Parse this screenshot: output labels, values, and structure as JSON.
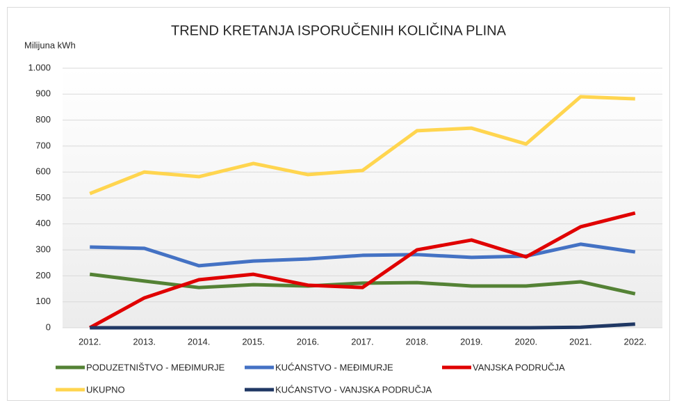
{
  "chart_data": {
    "type": "line",
    "title": "TREND KRETANJA ISPORUČENIH KOLIČINA PLINA",
    "y_label": "Milijuna kWh",
    "categories": [
      "2012.",
      "2013.",
      "2014.",
      "2015.",
      "2016.",
      "2017.",
      "2018.",
      "2019.",
      "2020.",
      "2021.",
      "2022."
    ],
    "series": [
      {
        "name": "PODUZETNIŠTVO - MEĐIMURJE",
        "color": "#548235",
        "values": [
          206,
          180,
          155,
          166,
          161,
          172,
          174,
          161,
          161,
          177,
          131
        ]
      },
      {
        "name": "KUĆANSTVO - MEĐIMURJE",
        "color": "#4472c4",
        "values": [
          311,
          306,
          239,
          257,
          265,
          279,
          282,
          271,
          276,
          322,
          292
        ]
      },
      {
        "name": "VANJSKA PODRUČJA",
        "color": "#e00000",
        "values": [
          0,
          115,
          185,
          206,
          164,
          155,
          300,
          338,
          273,
          389,
          442
        ]
      },
      {
        "name": "UKUPNO",
        "color": "#ffd54f",
        "values": [
          517,
          600,
          582,
          633,
          590,
          606,
          759,
          769,
          708,
          890,
          882
        ]
      },
      {
        "name": "KUĆANSTVO - VANJSKA PODRUČJA",
        "color": "#203864",
        "values": [
          0,
          0,
          0,
          0,
          0,
          0,
          0,
          0,
          0,
          2,
          14
        ]
      }
    ],
    "ylim": [
      0,
      1000
    ],
    "yticks": [
      0,
      100,
      200,
      300,
      400,
      500,
      600,
      700,
      800,
      900,
      {
        "value": 1000,
        "label": "1.000"
      }
    ],
    "grid": true,
    "legend": "bottom"
  }
}
